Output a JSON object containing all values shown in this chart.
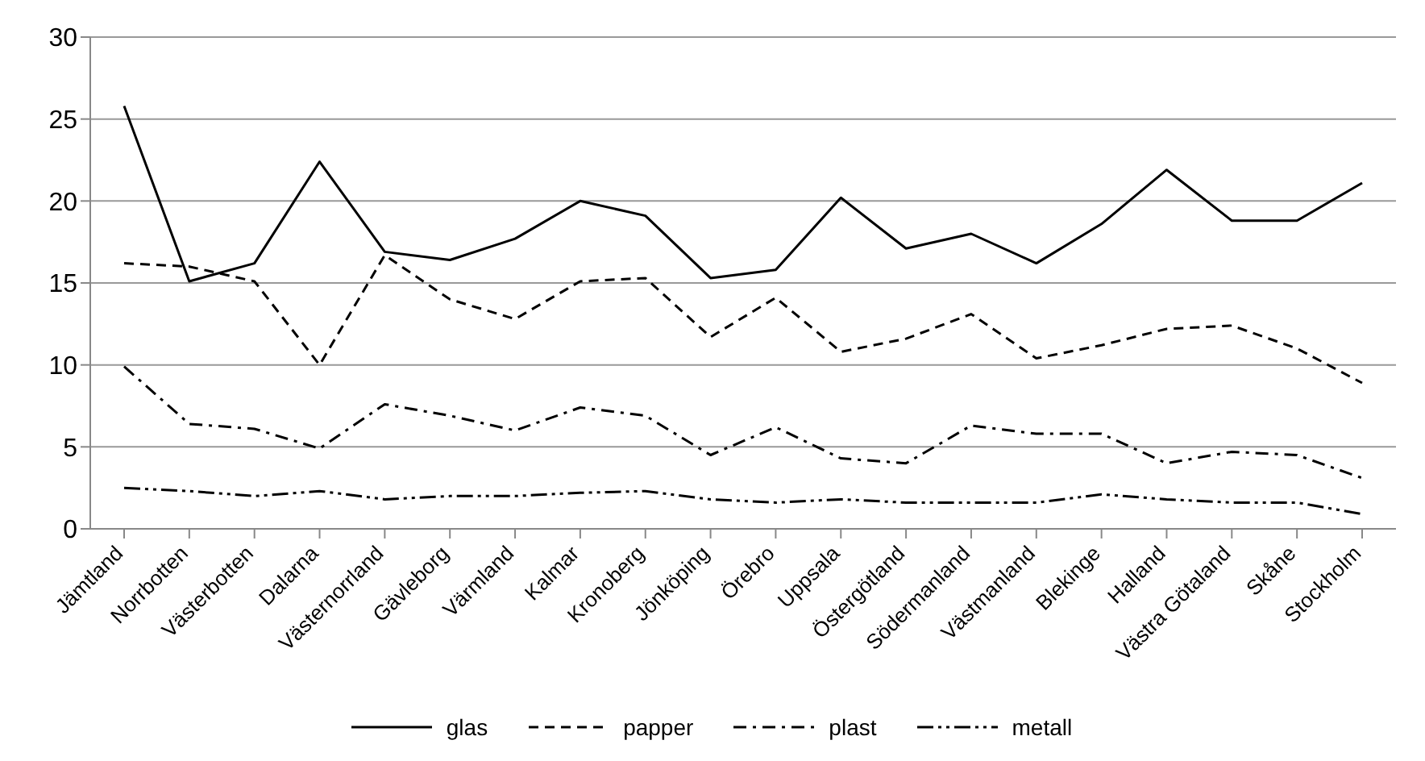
{
  "chart_data": {
    "type": "line",
    "categories": [
      "Jämtland",
      "Norrbotten",
      "Västerbotten",
      "Dalarna",
      "Västernorrland",
      "Gävleborg",
      "Värmland",
      "Kalmar",
      "Kronoberg",
      "Jönköping",
      "Örebro",
      "Uppsala",
      "Östergötland",
      "Södermanland",
      "Västmanland",
      "Blekinge",
      "Halland",
      "Västra Götaland",
      "Skåne",
      "Stockholm"
    ],
    "series": [
      {
        "name": "glas",
        "color": "#000000",
        "line_style": "solid",
        "values": [
          25.8,
          15.1,
          16.2,
          22.4,
          16.9,
          16.4,
          17.7,
          20.0,
          19.1,
          15.3,
          15.8,
          20.2,
          17.1,
          18.0,
          16.2,
          18.6,
          21.9,
          18.8,
          18.8,
          21.1
        ]
      },
      {
        "name": "papper",
        "color": "#000000",
        "line_style": "dashed",
        "values": [
          16.2,
          16.0,
          15.1,
          10.0,
          16.7,
          14.0,
          12.8,
          15.1,
          15.3,
          11.7,
          14.1,
          10.8,
          11.6,
          13.1,
          10.4,
          11.2,
          12.2,
          12.4,
          11.0,
          8.9
        ]
      },
      {
        "name": "plast",
        "color": "#000000",
        "line_style": "dashdot",
        "values": [
          9.9,
          6.4,
          6.1,
          4.9,
          7.6,
          6.9,
          6.0,
          7.4,
          6.9,
          4.5,
          6.2,
          4.3,
          4.0,
          6.3,
          5.8,
          5.8,
          4.0,
          4.7,
          4.5,
          3.1
        ]
      },
      {
        "name": "metall",
        "color": "#000000",
        "line_style": "dashdotdot",
        "values": [
          2.5,
          2.3,
          2.0,
          2.3,
          1.8,
          2.0,
          2.0,
          2.2,
          2.3,
          1.8,
          1.6,
          1.8,
          1.6,
          1.6,
          1.6,
          2.1,
          1.8,
          1.6,
          1.6,
          0.9
        ]
      }
    ],
    "ylim": [
      0,
      30
    ],
    "yticks": [
      0,
      5,
      10,
      15,
      20,
      25,
      30
    ],
    "grid": "y",
    "legend": "bottom",
    "marker": "none"
  }
}
